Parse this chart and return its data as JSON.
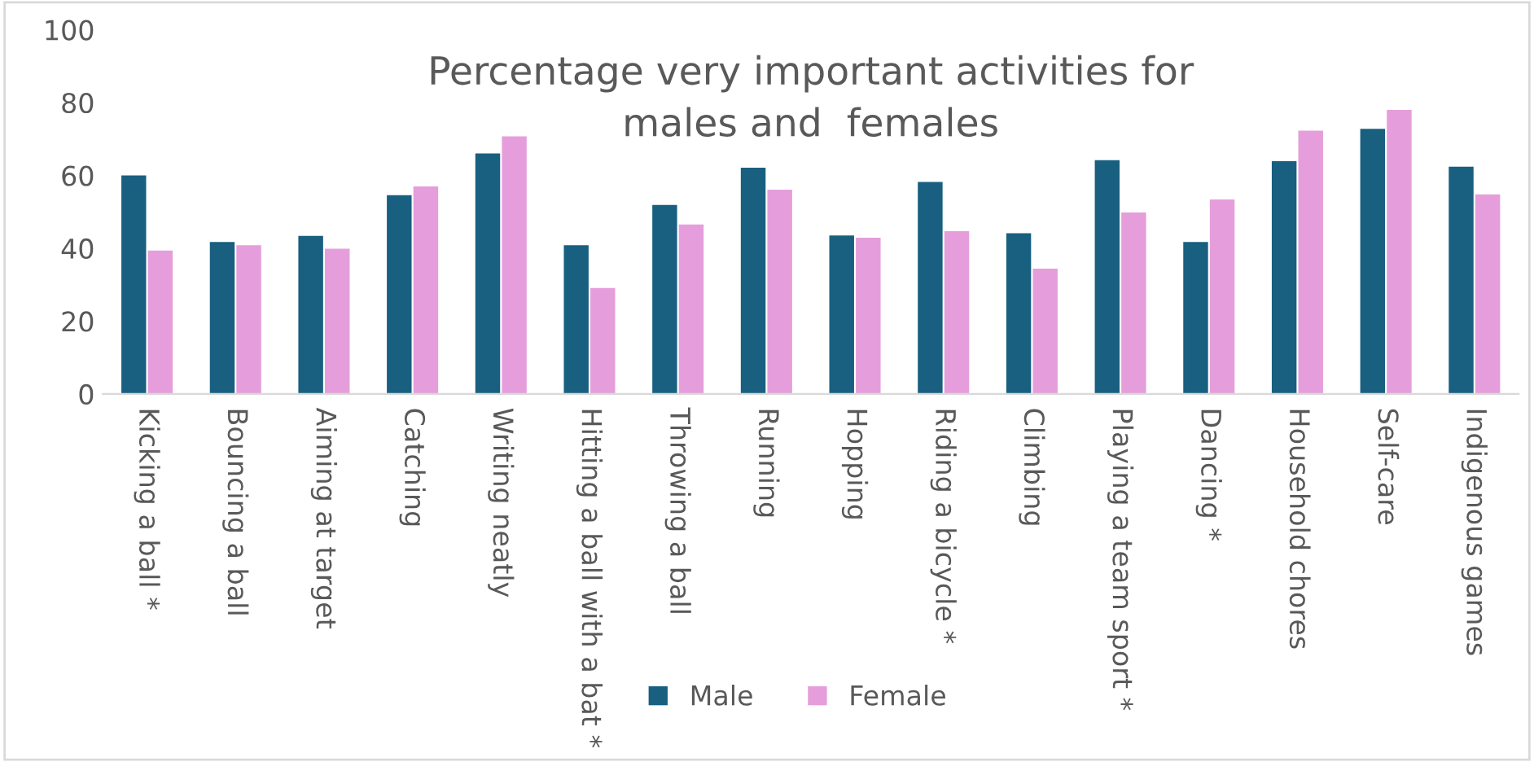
{
  "chart_data": {
    "type": "bar",
    "title": "Percentage very important activities for\nmales and  females",
    "categories": [
      "Kicking a ball *",
      "Bouncing a ball",
      "Aiming at target",
      "Catching",
      "Writing neatly",
      "Hitting a ball with a bat *",
      "Throwing a ball",
      "Running",
      "Hopping",
      "Riding a bicycle *",
      "Climbing",
      "Playing a team sport *",
      "Dancing *",
      "Household chores",
      "Self-care",
      "Indigenous games"
    ],
    "series": [
      {
        "name": "Male",
        "color": "#185f80",
        "values": [
          60.0,
          41.7,
          43.4,
          54.6,
          66.0,
          40.8,
          51.9,
          62.1,
          43.5,
          58.2,
          44.1,
          64.2,
          41.7,
          63.9,
          72.8,
          62.4
        ]
      },
      {
        "name": "Female",
        "color": "#e59edb",
        "values": [
          39.4,
          40.8,
          39.9,
          57.0,
          70.7,
          29.1,
          46.5,
          56.1,
          42.9,
          44.7,
          34.4,
          49.8,
          53.4,
          72.3,
          78.0,
          54.8
        ]
      }
    ],
    "ylim": [
      0,
      100
    ],
    "yticks": [
      0,
      20,
      40,
      60,
      80,
      100
    ],
    "grid": false,
    "legend": "bottom"
  }
}
